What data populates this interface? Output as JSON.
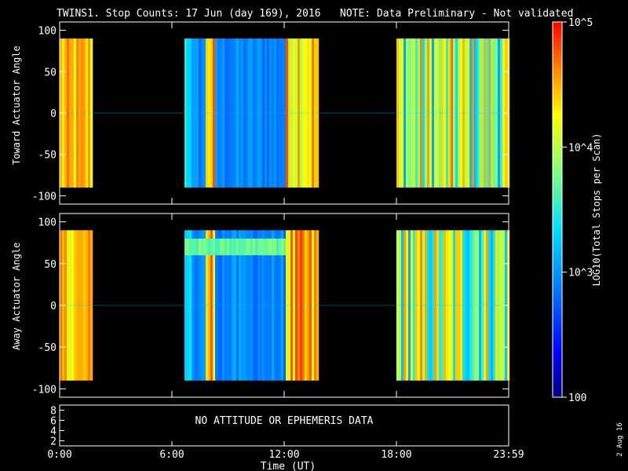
{
  "header": {
    "title": "TWINS1. Stop Counts: 17 Jun (day 169), 2016",
    "note": "NOTE: Data Preliminary - Not validated",
    "note_color": "#ff2020"
  },
  "side_stamp": "2 Aug 16",
  "colorbar": {
    "label": "LOG10(Total Stops per Scan)",
    "tick_labels": [
      "10^5",
      "10^4",
      "10^3",
      "100"
    ],
    "min": 100,
    "max": 100000,
    "scale": "log",
    "colormap": "rainbow (dark blue to red)"
  },
  "chart_data": [
    {
      "type": "heatmap",
      "name": "toward",
      "ylabel": "Toward Actuator Angle",
      "ylim": [
        -110,
        110
      ],
      "yticks": [
        "100",
        "50",
        "0",
        "-50",
        "-100"
      ],
      "xlim": [
        0,
        24
      ],
      "data_range": [
        -90,
        90
      ],
      "data_blocks": [
        {
          "start": "0:00",
          "end": "1:40",
          "level": "high (~5×10^4)"
        },
        {
          "start": "6:40",
          "end": "13:50",
          "level": "low (~700–2000) rising to high near 8:00 and 12:00–13:30"
        },
        {
          "start": "18:00",
          "end": "23:59",
          "level": "mixed (~1000–50000)"
        }
      ]
    },
    {
      "type": "heatmap",
      "name": "away",
      "ylabel": "Away Actuator Angle",
      "ylim": [
        -110,
        110
      ],
      "yticks": [
        "100",
        "50",
        "0",
        "-50",
        "-100"
      ],
      "xlim": [
        0,
        24
      ],
      "data_range": [
        -90,
        90
      ],
      "data_blocks": [
        {
          "start": "0:00",
          "end": "1:40",
          "level": "high (~5×10^4)"
        },
        {
          "start": "6:40",
          "end": "13:50",
          "level": "low (~700–2000) with band near +70"
        },
        {
          "start": "18:00",
          "end": "23:59",
          "level": "mixed (~1000–50000)"
        }
      ]
    }
  ],
  "bottom_panel": {
    "message": "NO ATTITUDE OR EPHEMERIS DATA",
    "yticks": [
      "8",
      "6",
      "4",
      "2"
    ]
  },
  "xaxis": {
    "tick_labels": [
      "0:00",
      "6:00",
      "12:00",
      "18:00",
      "23:59"
    ],
    "label": "Time (UT)"
  }
}
